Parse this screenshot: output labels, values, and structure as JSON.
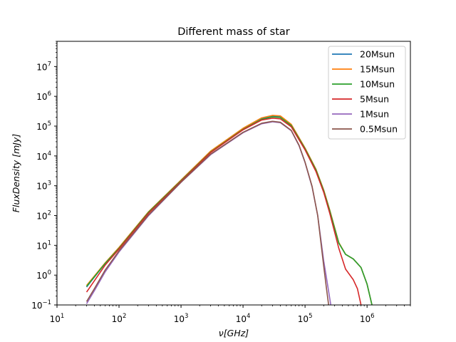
{
  "chart_data": {
    "type": "line",
    "title": "Different mass of star",
    "xlabel": "ν[GHz]",
    "ylabel": "FluxDensity [mJy]",
    "xscale": "log",
    "yscale": "log",
    "xlim": [
      10,
      5000000
    ],
    "ylim": [
      0.1,
      70000000
    ],
    "grid": false,
    "legend_position": "top-right",
    "x_ticks": [
      {
        "value": 10,
        "base": "10",
        "exp": "1"
      },
      {
        "value": 100,
        "base": "10",
        "exp": "2"
      },
      {
        "value": 1000,
        "base": "10",
        "exp": "3"
      },
      {
        "value": 10000,
        "base": "10",
        "exp": "4"
      },
      {
        "value": 100000,
        "base": "10",
        "exp": "5"
      },
      {
        "value": 1000000,
        "base": "10",
        "exp": "6"
      }
    ],
    "y_ticks": [
      {
        "value": 0.1,
        "base": "10",
        "exp": "−1"
      },
      {
        "value": 1,
        "base": "10",
        "exp": "0"
      },
      {
        "value": 10,
        "base": "10",
        "exp": "1"
      },
      {
        "value": 100,
        "base": "10",
        "exp": "2"
      },
      {
        "value": 1000,
        "base": "10",
        "exp": "3"
      },
      {
        "value": 10000,
        "base": "10",
        "exp": "4"
      },
      {
        "value": 100000,
        "base": "10",
        "exp": "5"
      },
      {
        "value": 1000000,
        "base": "10",
        "exp": "6"
      },
      {
        "value": 10000000,
        "base": "10",
        "exp": "7"
      }
    ],
    "series": [
      {
        "name": "20Msun",
        "color": "#1f77b4",
        "x": [
          30,
          60,
          100,
          300,
          1000,
          3000,
          10000,
          20000,
          30000,
          40000,
          60000,
          100000,
          150000,
          200000,
          250000,
          350000,
          450000,
          600000,
          800000,
          1000000,
          1200000
        ],
        "y": [
          0.4,
          2.5,
          8,
          130,
          1500,
          14000,
          80000,
          180000,
          220000,
          210000,
          110000,
          18000,
          3500,
          700,
          150,
          12,
          5,
          3.5,
          1.8,
          0.5,
          0.1
        ]
      },
      {
        "name": "15Msun",
        "color": "#ff7f0e",
        "x": [
          30,
          60,
          100,
          300,
          1000,
          3000,
          10000,
          20000,
          30000,
          40000,
          60000,
          100000,
          150000,
          200000,
          250000,
          350000,
          450000,
          600000,
          800000,
          1000000,
          1200000
        ],
        "y": [
          0.45,
          2.6,
          8.5,
          135,
          1550,
          14500,
          85000,
          190000,
          230000,
          220000,
          115000,
          18500,
          3600,
          720,
          155,
          12.5,
          5,
          3.5,
          1.8,
          0.5,
          0.1
        ]
      },
      {
        "name": "10Msun",
        "color": "#2ca02c",
        "x": [
          30,
          60,
          100,
          300,
          1000,
          3000,
          10000,
          20000,
          30000,
          40000,
          60000,
          100000,
          150000,
          200000,
          250000,
          350000,
          450000,
          600000,
          800000,
          1000000,
          1200000
        ],
        "y": [
          0.42,
          2.5,
          8,
          130,
          1480,
          13500,
          78000,
          170000,
          205000,
          195000,
          105000,
          17500,
          3400,
          680,
          145,
          12,
          5,
          3.5,
          1.8,
          0.5,
          0.1
        ]
      },
      {
        "name": "5Msun",
        "color": "#d62728",
        "x": [
          30,
          60,
          100,
          300,
          1000,
          3000,
          10000,
          20000,
          30000,
          40000,
          60000,
          100000,
          150000,
          200000,
          250000,
          350000,
          450000,
          600000,
          700000,
          800000
        ],
        "y": [
          0.27,
          2.2,
          7.5,
          120,
          1400,
          13000,
          75000,
          160000,
          185000,
          175000,
          95000,
          16000,
          3000,
          600,
          120,
          8,
          1.6,
          0.7,
          0.35,
          0.1
        ]
      },
      {
        "name": "1Msun",
        "color": "#9467bd",
        "x": [
          30,
          40,
          60,
          100,
          300,
          1000,
          3000,
          10000,
          20000,
          30000,
          40000,
          60000,
          80000,
          100000,
          130000,
          160000,
          200000,
          230000,
          260000
        ],
        "y": [
          0.11,
          0.3,
          1.3,
          6,
          100,
          1300,
          11000,
          60000,
          120000,
          140000,
          130000,
          70000,
          22000,
          6000,
          900,
          100,
          3,
          0.5,
          0.1
        ]
      },
      {
        "name": "0.5Msun",
        "color": "#8c564b",
        "x": [
          30,
          40,
          60,
          100,
          300,
          1000,
          3000,
          10000,
          20000,
          30000,
          40000,
          60000,
          80000,
          100000,
          130000,
          160000,
          200000,
          220000,
          240000
        ],
        "y": [
          0.13,
          0.35,
          1.5,
          6.5,
          105,
          1320,
          11500,
          62000,
          125000,
          145000,
          135000,
          72000,
          23000,
          6200,
          950,
          100,
          2,
          0.4,
          0.1
        ]
      }
    ]
  }
}
